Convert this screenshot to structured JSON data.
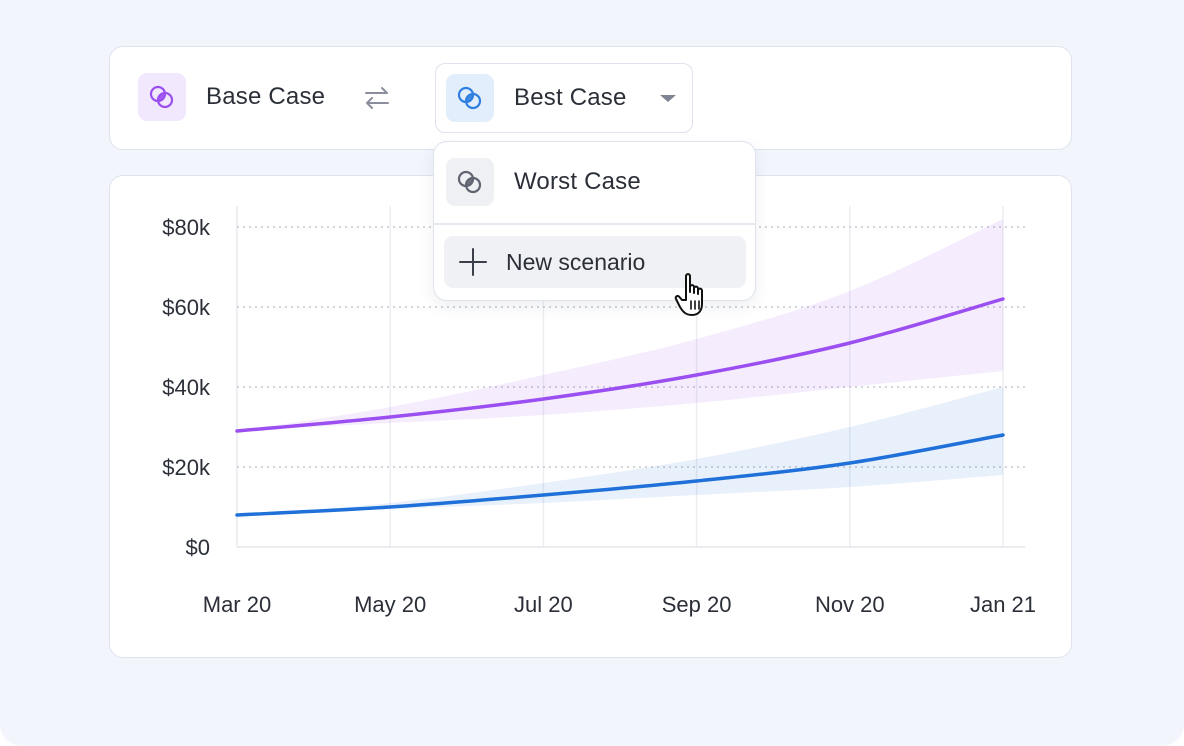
{
  "scenarios": {
    "base": {
      "label": "Base Case",
      "icon": "overlapping-circles-icon",
      "color": "#9b4ff0"
    },
    "swap_icon": "swap-arrows-icon",
    "selected": {
      "label": "Best Case",
      "icon": "overlapping-circles-icon",
      "color": "#2f7fe0"
    },
    "dropdown": {
      "items": [
        {
          "label": "Worst Case",
          "icon": "overlapping-circles-icon",
          "color": "#5f6470"
        }
      ],
      "new_scenario_label": "New scenario"
    }
  },
  "chart_data": {
    "type": "line",
    "x": [
      "Mar 20",
      "May 20",
      "Jul 20",
      "Sep 20",
      "Nov 20",
      "Jan 21"
    ],
    "ylim": [
      0,
      80000
    ],
    "y_ticks": [
      "$0",
      "$20k",
      "$40k",
      "$60k",
      "$80k"
    ],
    "grid": true,
    "series": [
      {
        "color": "#9b4ff0",
        "values": [
          29000,
          32500,
          37000,
          43000,
          51000,
          62000
        ],
        "band_lower": [
          29000,
          31000,
          33000,
          36000,
          40000,
          44000
        ],
        "band_upper": [
          29000,
          35000,
          43000,
          52000,
          64000,
          82000
        ]
      },
      {
        "color": "#1f70d8",
        "values": [
          8000,
          10000,
          13000,
          16500,
          21000,
          28000
        ],
        "band_lower": [
          8000,
          9500,
          11000,
          13000,
          15000,
          18000
        ],
        "band_upper": [
          8000,
          11000,
          16000,
          22000,
          30000,
          40000
        ]
      }
    ]
  }
}
